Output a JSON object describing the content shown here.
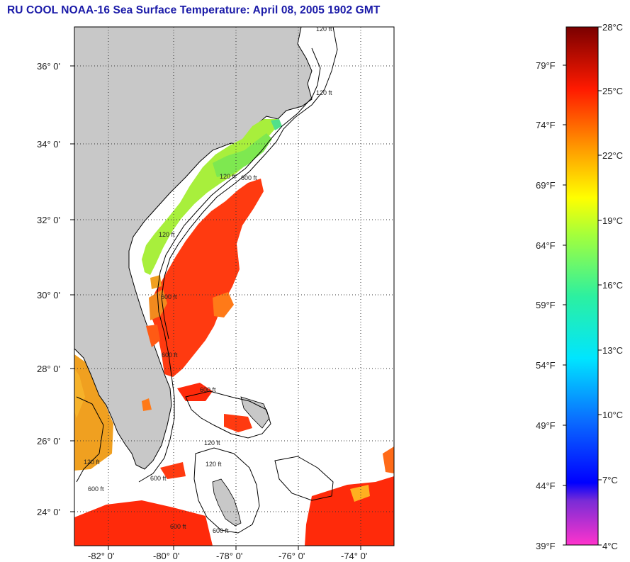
{
  "title": "RU COOL  NOAA-16  Sea Surface Temperature:  April 08, 2005 1902 GMT",
  "map": {
    "lat_labels": [
      "36° 0'",
      "34° 0'",
      "32° 0'",
      "30° 0'",
      "28° 0'",
      "26° 0'",
      "24° 0'"
    ],
    "lon_labels": [
      "-82° 0'",
      "-80° 0'",
      "-78° 0'",
      "-76° 0'",
      "-74° 0'"
    ],
    "depth_labels": [
      "120 ft",
      "120 ft",
      "120 ft",
      "600 ft",
      "120 ft",
      "600 ft",
      "600 ft",
      "600 ft",
      "600 ft",
      "120 ft",
      "600 ft",
      "120 ft",
      "600 ft",
      "120 ft",
      "600 ft"
    ],
    "land_color": "#c8c8c8",
    "contour_color": "#000000"
  },
  "colorbar": {
    "celsius_labels": [
      "28°C",
      "25°C",
      "22°C",
      "19°C",
      "16°C",
      "13°C",
      "10°C",
      "7°C",
      "4°C"
    ],
    "fahrenheit_labels": [
      "79°F",
      "74°F",
      "69°F",
      "64°F",
      "59°F",
      "54°F",
      "49°F",
      "44°F",
      "39°F"
    ]
  }
}
